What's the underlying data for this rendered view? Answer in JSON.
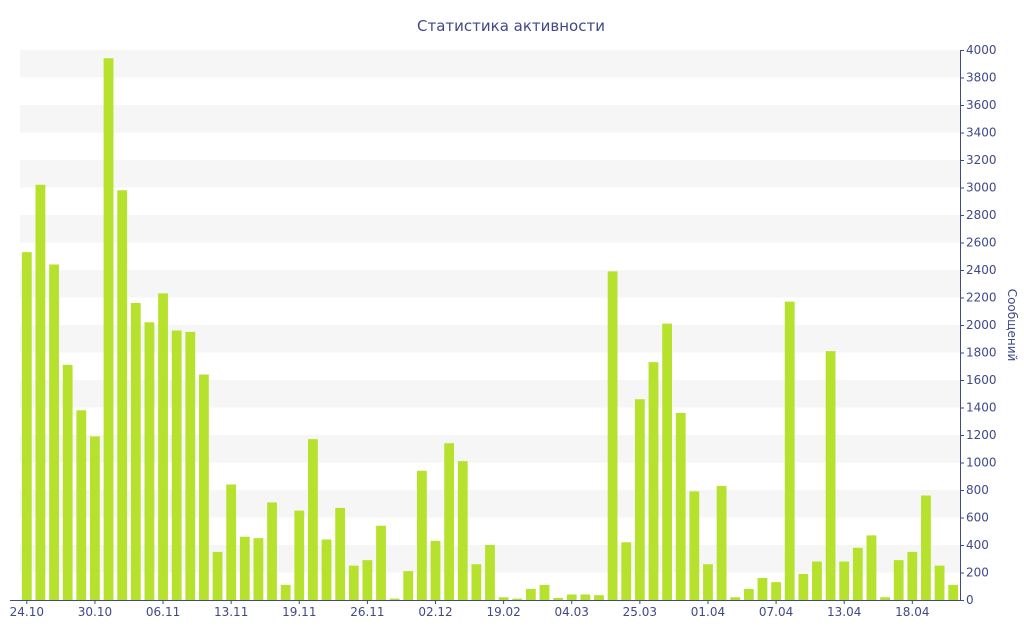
{
  "chart_data": {
    "type": "bar",
    "title": "Статистика активности",
    "xlabel": "",
    "ylabel": "Сообщений",
    "ylim": [
      0,
      4000
    ],
    "y_ticks": [
      "0",
      "200",
      "400",
      "600",
      "800",
      "1000",
      "1200",
      "1400",
      "1600",
      "1800",
      "2000",
      "2200",
      "2400",
      "2600",
      "2800",
      "3000",
      "3200",
      "3400",
      "3600",
      "3800",
      "4000"
    ],
    "y_axis_side": "right",
    "grid": "alternating horizontal bands",
    "x_tick_labels": [
      {
        "label": "24.10",
        "index": 0
      },
      {
        "label": "30.10",
        "index": 5
      },
      {
        "label": "06.11",
        "index": 10
      },
      {
        "label": "13.11",
        "index": 15
      },
      {
        "label": "19.11",
        "index": 20
      },
      {
        "label": "26.11",
        "index": 25
      },
      {
        "label": "02.12",
        "index": 30
      },
      {
        "label": "19.02",
        "index": 35
      },
      {
        "label": "04.03",
        "index": 40
      },
      {
        "label": "25.03",
        "index": 45
      },
      {
        "label": "01.04",
        "index": 50
      },
      {
        "label": "07.04",
        "index": 55
      },
      {
        "label": "13.04",
        "index": 60
      },
      {
        "label": "18.04",
        "index": 65
      }
    ],
    "series": [
      {
        "values": [
          2530,
          3020,
          2440,
          1710,
          1380,
          1190,
          3940,
          2980,
          2160,
          2020,
          2230,
          1960,
          1950,
          1640,
          350,
          840,
          460,
          450,
          710,
          110,
          650,
          1170,
          440,
          670,
          250,
          290,
          540,
          10,
          210,
          940,
          430,
          1140,
          1010,
          260,
          400,
          20,
          10,
          80,
          110,
          15,
          40,
          40,
          35,
          2390,
          420,
          1460,
          1730,
          2010,
          1360,
          790,
          260,
          830,
          20,
          80,
          160,
          130,
          2170,
          190,
          280,
          1810,
          280,
          380,
          470,
          20,
          290,
          350,
          760,
          250,
          110
        ]
      }
    ],
    "colors": {
      "bar": "#b6e22e",
      "text": "#3f4a86",
      "band": "#f6f6f6",
      "axis": "#3f4a86"
    }
  }
}
